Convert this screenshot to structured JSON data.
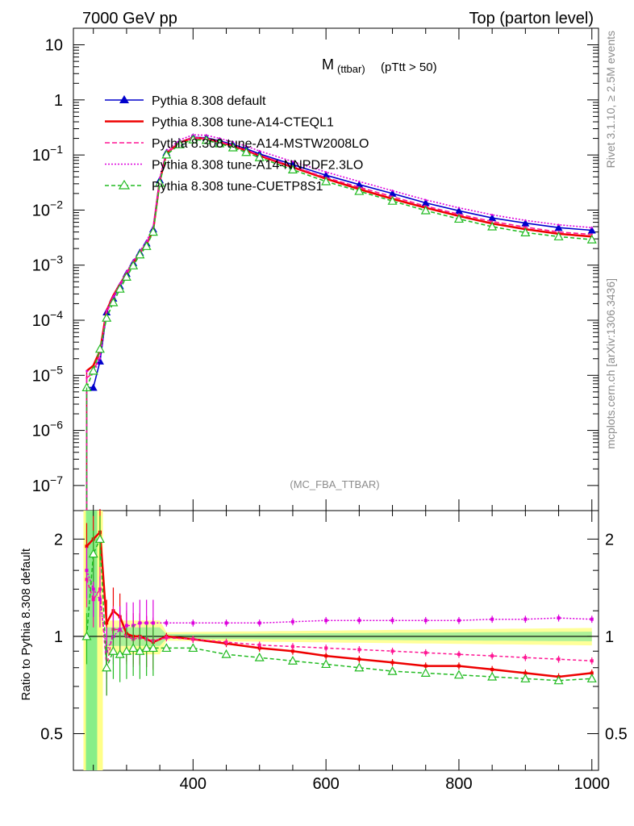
{
  "header": {
    "left": "7000 GeV pp",
    "right": "Top (parton level)"
  },
  "side": {
    "rivet": "Rivet 3.1.10, ≥ 2.5M events",
    "mcplots": "mcplots.cern.ch [arXiv:1306.3436]"
  },
  "plot_title": {
    "main": "M",
    "sub": "(ttbar)",
    "cut": "(pTtt > 50)"
  },
  "analysis_tag": "(MC_FBA_TTBAR)",
  "ratio_ylabel": "Ratio to Pythia 8.308 default",
  "chart_data": [
    {
      "type": "line",
      "panel": "main",
      "yscale": "log",
      "xlim": [
        220,
        1010
      ],
      "ylim": [
        3.5e-08,
        20
      ],
      "xticks": [
        400,
        600,
        800,
        1000
      ],
      "yticks": [
        {
          "v": 10,
          "t": "10"
        },
        {
          "v": 1,
          "t": "1"
        },
        {
          "v": 0.1,
          "t": "10^-1"
        },
        {
          "v": 0.01,
          "t": "10^-2"
        },
        {
          "v": 0.001,
          "t": "10^-3"
        },
        {
          "v": 0.0001,
          "t": "10^-4"
        },
        {
          "v": 1e-05,
          "t": "10^-5"
        },
        {
          "v": 1e-06,
          "t": "10^-6"
        },
        {
          "v": 1e-07,
          "t": "10^-7"
        }
      ],
      "legend_position": "top-left",
      "series": [
        {
          "name": "Pythia 8.308 default",
          "color": "#0000cc",
          "dash": "",
          "marker": "triangle-filled",
          "x": [
            240,
            250,
            260,
            270,
            280,
            290,
            300,
            310,
            320,
            330,
            340,
            350,
            360,
            380,
            400,
            420,
            440,
            460,
            480,
            500,
            550,
            600,
            650,
            700,
            750,
            800,
            850,
            900,
            950,
            1000
          ],
          "y": [
            6e-06,
            6e-06,
            1.8e-05,
            0.00014,
            0.00025,
            0.00042,
            0.0007,
            0.0011,
            0.0017,
            0.0025,
            0.0045,
            0.035,
            0.11,
            0.17,
            0.21,
            0.205,
            0.18,
            0.155,
            0.13,
            0.105,
            0.067,
            0.043,
            0.029,
            0.02,
            0.0135,
            0.0097,
            0.0072,
            0.0058,
            0.0048,
            0.0043
          ]
        },
        {
          "name": "Pythia 8.308 tune-A14-CTEQL1",
          "color": "#ee0000",
          "dash": "",
          "marker": "none",
          "x": [
            240,
            250,
            260,
            270,
            280,
            290,
            300,
            310,
            320,
            330,
            340,
            350,
            360,
            380,
            400,
            420,
            440,
            460,
            480,
            500,
            550,
            600,
            650,
            700,
            750,
            800,
            850,
            900,
            950,
            1000
          ],
          "y": [
            1.2e-05,
            1.5e-05,
            2.8e-05,
            0.00015,
            0.00028,
            0.00045,
            0.00072,
            0.0011,
            0.0017,
            0.0024,
            0.0043,
            0.034,
            0.108,
            0.168,
            0.205,
            0.198,
            0.172,
            0.146,
            0.121,
            0.097,
            0.06,
            0.037,
            0.024,
            0.016,
            0.011,
            0.0078,
            0.0057,
            0.0045,
            0.0037,
            0.0033
          ]
        },
        {
          "name": "Pythia 8.308 tune-A14-MSTW2008LO",
          "color": "#ff1493",
          "dash": "6,3",
          "marker": "none",
          "x": [
            240,
            250,
            260,
            270,
            280,
            290,
            300,
            310,
            320,
            330,
            340,
            350,
            360,
            380,
            400,
            420,
            440,
            460,
            480,
            500,
            550,
            600,
            650,
            700,
            750,
            800,
            850,
            900,
            950,
            1000
          ],
          "y": [
            9e-06,
            1.1e-05,
            2.5e-05,
            0.00014,
            0.00026,
            0.00044,
            0.0007,
            0.0011,
            0.0017,
            0.0024,
            0.0044,
            0.034,
            0.108,
            0.168,
            0.205,
            0.2,
            0.174,
            0.149,
            0.124,
            0.1,
            0.062,
            0.039,
            0.026,
            0.0175,
            0.0118,
            0.0084,
            0.0062,
            0.0049,
            0.004,
            0.0036
          ]
        },
        {
          "name": "Pythia 8.308 tune-A14-NNPDF2.3LO",
          "color": "#dd00dd",
          "dash": "2,2",
          "marker": "none",
          "x": [
            240,
            250,
            260,
            270,
            280,
            290,
            300,
            310,
            320,
            330,
            340,
            350,
            360,
            380,
            400,
            420,
            440,
            460,
            480,
            500,
            550,
            600,
            650,
            700,
            750,
            800,
            850,
            900,
            950,
            1000
          ],
          "y": [
            1.2e-05,
            1.1e-05,
            2e-05,
            0.00015,
            0.00027,
            0.00046,
            0.00076,
            0.0012,
            0.0018,
            0.0027,
            0.005,
            0.038,
            0.12,
            0.188,
            0.232,
            0.228,
            0.2,
            0.172,
            0.145,
            0.118,
            0.076,
            0.049,
            0.033,
            0.0225,
            0.0153,
            0.011,
            0.0082,
            0.0065,
            0.0054,
            0.0048
          ]
        },
        {
          "name": "Pythia 8.308 tune-CUETP8S1",
          "color": "#22bb22",
          "dash": "5,3",
          "marker": "triangle-open",
          "x": [
            240,
            250,
            260,
            270,
            280,
            290,
            300,
            310,
            320,
            330,
            340,
            350,
            360,
            380,
            400,
            420,
            440,
            460,
            480,
            500,
            550,
            600,
            650,
            700,
            750,
            800,
            850,
            900,
            950,
            1000
          ],
          "y": [
            6e-06,
            1.2e-05,
            3e-05,
            0.00011,
            0.00021,
            0.00037,
            0.00061,
            0.00098,
            0.00155,
            0.0022,
            0.004,
            0.031,
            0.101,
            0.155,
            0.19,
            0.185,
            0.161,
            0.136,
            0.112,
            0.09,
            0.054,
            0.033,
            0.022,
            0.0146,
            0.0098,
            0.0069,
            0.005,
            0.0039,
            0.0033,
            0.0029
          ]
        }
      ]
    },
    {
      "type": "line",
      "panel": "ratio",
      "ylabel": "Ratio to Pythia 8.308 default",
      "xlim": [
        220,
        1010
      ],
      "ylim": [
        0.385,
        2.45
      ],
      "yscale": "log",
      "xticks": [
        400,
        600,
        800,
        1000
      ],
      "yticks": [
        {
          "v": 2,
          "t": "2"
        },
        {
          "v": 1,
          "t": "1"
        },
        {
          "v": 0.5,
          "t": "0.5"
        }
      ],
      "series": [
        {
          "name": "Pythia 8.308 tune-A14-CTEQL1",
          "color": "#ee0000",
          "dash": "",
          "x": [
            240,
            250,
            260,
            270,
            280,
            290,
            300,
            310,
            320,
            330,
            340,
            360,
            400,
            450,
            500,
            550,
            600,
            650,
            700,
            750,
            800,
            850,
            900,
            950,
            1000
          ],
          "y": [
            1.9,
            2.0,
            2.1,
            1.1,
            1.2,
            1.15,
            1.02,
            1.0,
            1.0,
            0.98,
            0.96,
            1.0,
            0.98,
            0.95,
            0.92,
            0.9,
            0.87,
            0.85,
            0.83,
            0.81,
            0.81,
            0.79,
            0.77,
            0.75,
            0.77
          ]
        },
        {
          "name": "Pythia 8.308 tune-A14-MSTW2008LO",
          "color": "#ff1493",
          "dash": "4,3",
          "x": [
            240,
            250,
            260,
            270,
            280,
            290,
            300,
            310,
            320,
            330,
            340,
            360,
            400,
            450,
            500,
            550,
            600,
            650,
            700,
            750,
            800,
            850,
            900,
            950,
            1000
          ],
          "y": [
            1.5,
            1.3,
            1.4,
            0.8,
            1.05,
            1.05,
            1.0,
            0.98,
            0.99,
            0.98,
            0.97,
            0.99,
            0.98,
            0.96,
            0.94,
            0.93,
            0.92,
            0.91,
            0.9,
            0.89,
            0.88,
            0.87,
            0.86,
            0.85,
            0.84
          ]
        },
        {
          "name": "Pythia 8.308 tune-A14-NNPDF2.3LO",
          "color": "#dd00dd",
          "dash": "2,2",
          "x": [
            240,
            250,
            260,
            270,
            280,
            290,
            300,
            310,
            320,
            330,
            340,
            360,
            400,
            450,
            500,
            550,
            600,
            650,
            700,
            750,
            800,
            850,
            900,
            950,
            1000
          ],
          "y": [
            1.6,
            1.4,
            1.3,
            0.9,
            1.0,
            1.05,
            1.08,
            1.08,
            1.1,
            1.1,
            1.1,
            1.1,
            1.1,
            1.1,
            1.1,
            1.11,
            1.12,
            1.12,
            1.12,
            1.12,
            1.12,
            1.13,
            1.13,
            1.14,
            1.13
          ]
        },
        {
          "name": "Pythia 8.308 tune-CUETP8S1",
          "color": "#22bb22",
          "dash": "5,3",
          "x": [
            240,
            250,
            260,
            270,
            280,
            290,
            300,
            310,
            320,
            330,
            340,
            360,
            400,
            450,
            500,
            550,
            600,
            650,
            700,
            750,
            800,
            850,
            900,
            950,
            1000
          ],
          "y": [
            1.0,
            1.8,
            2.0,
            0.8,
            0.9,
            0.88,
            0.9,
            0.92,
            0.9,
            0.92,
            0.92,
            0.92,
            0.92,
            0.88,
            0.86,
            0.84,
            0.82,
            0.8,
            0.78,
            0.77,
            0.76,
            0.75,
            0.74,
            0.73,
            0.74
          ]
        }
      ]
    }
  ]
}
